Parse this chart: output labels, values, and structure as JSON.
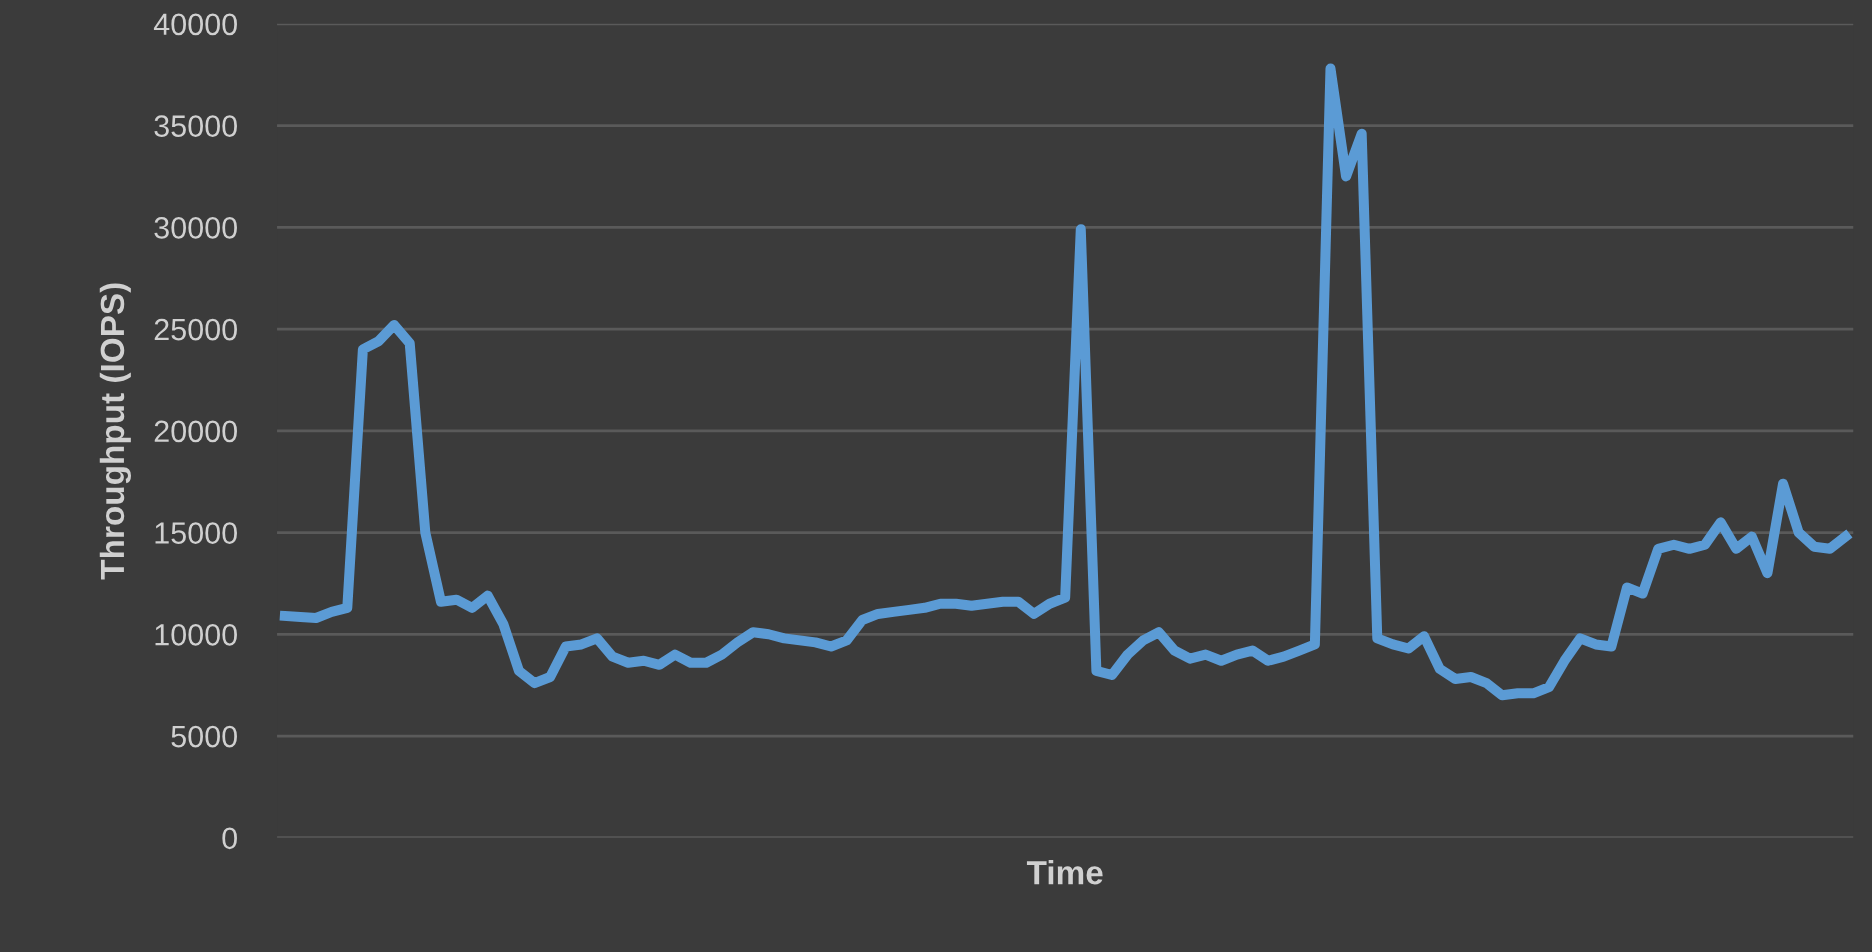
{
  "chart_data": {
    "type": "line",
    "xlabel": "Time",
    "ylabel": "Throughput (IOPS)",
    "categories": [
      null,
      null,
      null,
      null,
      null,
      null,
      null,
      null,
      null,
      null,
      null,
      null,
      null,
      null,
      null,
      null,
      null,
      null,
      null,
      null,
      null,
      null,
      null,
      null,
      null,
      null,
      null,
      null,
      null,
      null,
      null,
      null,
      null,
      null,
      null,
      null,
      null,
      null,
      null,
      null,
      null,
      null,
      null,
      null,
      null,
      null,
      null,
      null,
      null,
      null,
      null,
      null,
      null,
      null,
      null,
      null,
      null,
      null,
      null,
      null,
      null,
      null,
      null,
      null,
      null,
      null,
      null,
      null,
      null,
      null,
      null,
      null,
      null,
      null,
      null,
      null,
      null,
      null,
      null,
      null,
      null,
      null,
      null,
      null,
      null,
      null,
      null,
      null,
      null,
      null,
      null,
      null,
      null,
      null,
      null,
      null,
      null,
      null,
      null,
      null,
      null
    ],
    "series": [
      {
        "color": "#5b9bd5",
        "values": [
          10900,
          10850,
          10800,
          11100,
          11300,
          24000,
          24400,
          25200,
          24300,
          15000,
          11600,
          11700,
          11300,
          11900,
          10500,
          8200,
          7600,
          7900,
          9400,
          9500,
          9800,
          8900,
          8600,
          8700,
          8500,
          9000,
          8600,
          8600,
          9000,
          9600,
          10100,
          10000,
          9800,
          9700,
          9600,
          9400,
          9700,
          10700,
          11000,
          11100,
          11200,
          11300,
          11500,
          11500,
          11400,
          11500,
          11600,
          11600,
          11000,
          11500,
          11800,
          29900,
          8200,
          8000,
          9000,
          9700,
          10100,
          9200,
          8800,
          9000,
          8700,
          9000,
          9200,
          8700,
          8900,
          9200,
          9500,
          37800,
          32500,
          34600,
          9800,
          9500,
          9300,
          9900,
          8300,
          7800,
          7900,
          7600,
          7000,
          7100,
          7100,
          7400,
          8700,
          9800,
          9500,
          9400,
          12300,
          12000,
          14200,
          14400,
          14200,
          14400,
          15500,
          14200,
          14800,
          13000,
          17400,
          15000,
          14300,
          14200,
          14800
        ]
      }
    ],
    "ylim": [
      0,
      40000
    ],
    "yticks": [
      0,
      5000,
      10000,
      15000,
      20000,
      25000,
      30000,
      35000,
      40000
    ],
    "grid": "y",
    "legend": false,
    "marker": "none",
    "line_style": "solid"
  }
}
